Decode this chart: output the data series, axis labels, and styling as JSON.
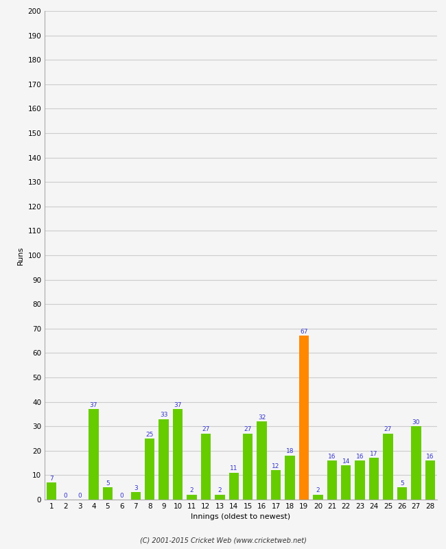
{
  "innings": [
    1,
    2,
    3,
    4,
    5,
    6,
    7,
    8,
    9,
    10,
    11,
    12,
    13,
    14,
    15,
    16,
    17,
    18,
    19,
    20,
    21,
    22,
    23,
    24,
    25,
    26,
    27,
    28
  ],
  "runs": [
    7,
    0,
    0,
    37,
    5,
    0,
    3,
    25,
    33,
    37,
    2,
    27,
    2,
    11,
    27,
    32,
    12,
    18,
    67,
    2,
    16,
    14,
    16,
    17,
    27,
    5,
    30,
    16
  ],
  "colors": [
    "#66cc00",
    "#66cc00",
    "#66cc00",
    "#66cc00",
    "#66cc00",
    "#66cc00",
    "#66cc00",
    "#66cc00",
    "#66cc00",
    "#66cc00",
    "#66cc00",
    "#66cc00",
    "#66cc00",
    "#66cc00",
    "#66cc00",
    "#66cc00",
    "#66cc00",
    "#66cc00",
    "#ff8800",
    "#66cc00",
    "#66cc00",
    "#66cc00",
    "#66cc00",
    "#66cc00",
    "#66cc00",
    "#66cc00",
    "#66cc00",
    "#66cc00"
  ],
  "xlabel": "Innings (oldest to newest)",
  "ylabel": "Runs",
  "ylim": [
    0,
    200
  ],
  "yticks": [
    0,
    10,
    20,
    30,
    40,
    50,
    60,
    70,
    80,
    90,
    100,
    110,
    120,
    130,
    140,
    150,
    160,
    170,
    180,
    190,
    200
  ],
  "value_color": "#3333cc",
  "value_fontsize": 6.5,
  "bar_width": 0.7,
  "background_color": "#f5f5f5",
  "footer": "(C) 2001-2015 Cricket Web (www.cricketweb.net)",
  "grid_color": "#cccccc",
  "axis_label_fontsize": 8,
  "tick_label_fontsize": 7.5,
  "spine_color": "#aaaaaa"
}
